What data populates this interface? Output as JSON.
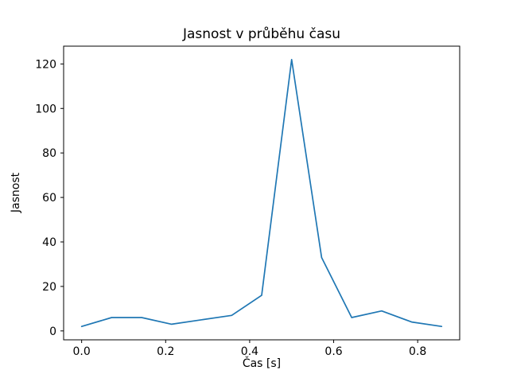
{
  "chart_data": {
    "type": "line",
    "title": "Jasnost v průběhu času",
    "xlabel": "Čas [s]",
    "ylabel": "Jasnost",
    "x": [
      0.0,
      0.0714,
      0.1429,
      0.2143,
      0.2857,
      0.3571,
      0.4286,
      0.5,
      0.5714,
      0.6429,
      0.7143,
      0.7857,
      0.8571
    ],
    "y": [
      2,
      6,
      6,
      3,
      5,
      7,
      16,
      122,
      33,
      6,
      9,
      4,
      2
    ],
    "xlim": [
      -0.0429,
      0.9
    ],
    "ylim": [
      -4.0,
      128.0
    ],
    "xticks": [
      0.0,
      0.2,
      0.4,
      0.6,
      0.8
    ],
    "xtick_labels": [
      "0.0",
      "0.2",
      "0.4",
      "0.6",
      "0.8"
    ],
    "yticks": [
      0,
      20,
      40,
      60,
      80,
      100,
      120
    ],
    "ytick_labels": [
      "0",
      "20",
      "40",
      "60",
      "80",
      "100",
      "120"
    ],
    "line_color": "#1f77b4",
    "axis_color": "#000000",
    "background_color": "#ffffff",
    "grid": false,
    "legend": null
  }
}
